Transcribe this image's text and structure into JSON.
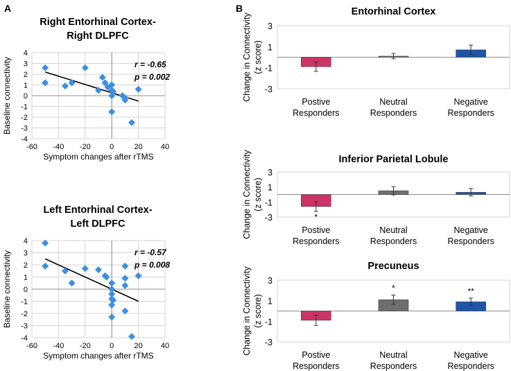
{
  "panel_labels": {
    "a": "A",
    "b": "B"
  },
  "colors": {
    "scatter_point": "#3d8fe0",
    "positive_bar": "#cc3366",
    "neutral_bar": "#6e6e6e",
    "negative_bar": "#1f55a8",
    "grid": "#d4d4d4",
    "axis": "#8c8c8c"
  },
  "chart_data": [
    {
      "type": "scatter",
      "title_line1": "Right Entorhinal Cortex-",
      "title_line2": "Right DLPFC",
      "xlabel": "Symptom changes after rTMS",
      "ylabel": "Baseline connectivity",
      "xlim": [
        -60,
        40
      ],
      "ylim": [
        -4,
        4
      ],
      "xticks": [
        -60,
        -40,
        -20,
        0,
        20,
        40
      ],
      "yticks": [
        -4,
        -3,
        -2,
        -1,
        0,
        1,
        2,
        3,
        4
      ],
      "r_text": "r = -0.65",
      "p_text": "p = 0.002",
      "points": [
        [
          -50,
          2.6
        ],
        [
          -50,
          1.2
        ],
        [
          -35,
          0.9
        ],
        [
          -30,
          1.2
        ],
        [
          -20,
          2.6
        ],
        [
          -10,
          0.5
        ],
        [
          -7,
          1.7
        ],
        [
          -5,
          1.2
        ],
        [
          -3,
          0.8
        ],
        [
          0,
          1.0
        ],
        [
          0,
          0.5
        ],
        [
          0,
          0.0
        ],
        [
          0,
          -1.5
        ],
        [
          1,
          0.4
        ],
        [
          8,
          0.0
        ],
        [
          10,
          -0.2
        ],
        [
          10,
          -0.4
        ],
        [
          15,
          -2.5
        ],
        [
          20,
          0.6
        ]
      ],
      "fit_line": [
        [
          -50,
          2.2
        ],
        [
          20,
          -0.5
        ]
      ]
    },
    {
      "type": "scatter",
      "title_line1": "Left Entorhinal Cortex-",
      "title_line2": "Left DLPFC",
      "xlabel": "Symptom changes after rTMS",
      "ylabel": "Baseline connectivity",
      "xlim": [
        -60,
        40
      ],
      "ylim": [
        -4,
        4
      ],
      "xticks": [
        -60,
        -40,
        -20,
        0,
        20,
        40
      ],
      "yticks": [
        -4,
        -3,
        -2,
        -1,
        0,
        1,
        2,
        3,
        4
      ],
      "r_text": "r = -0.57",
      "p_text": "p = 0.008",
      "points": [
        [
          -50,
          3.8
        ],
        [
          -50,
          1.9
        ],
        [
          -35,
          1.5
        ],
        [
          -30,
          0.5
        ],
        [
          -20,
          1.7
        ],
        [
          -10,
          1.6
        ],
        [
          -5,
          1.1
        ],
        [
          -4,
          1.0
        ],
        [
          0,
          0.5
        ],
        [
          0,
          0.0
        ],
        [
          0,
          -0.4
        ],
        [
          0,
          -0.8
        ],
        [
          0,
          -1.3
        ],
        [
          0,
          -2.3
        ],
        [
          1,
          -0.9
        ],
        [
          10,
          1.9
        ],
        [
          10,
          0.9
        ],
        [
          10,
          0.3
        ],
        [
          10,
          -1.8
        ],
        [
          15,
          -3.9
        ],
        [
          20,
          1.1
        ]
      ],
      "fit_line": [
        [
          -50,
          2.5
        ],
        [
          20,
          -1.0
        ]
      ]
    },
    {
      "type": "bar",
      "title": "Entorhinal Cortex",
      "ylabel_line1": "Change in Connectivity",
      "ylabel_line2": "(z score)",
      "ylim": [
        -3,
        3
      ],
      "yticks": [
        -3,
        -1,
        1,
        3
      ],
      "categories": [
        {
          "line1": "Postive",
          "line2": "Responders"
        },
        {
          "line1": "Neutral",
          "line2": "Responders"
        },
        {
          "line1": "Negative",
          "line2": "Responders"
        }
      ],
      "values": [
        -0.9,
        0.1,
        0.7
      ],
      "errors": [
        0.45,
        0.25,
        0.45
      ],
      "significance": [
        "",
        "",
        ""
      ]
    },
    {
      "type": "bar",
      "title": "Inferior Parietal Lobule",
      "ylabel_line1": "Change in Connectivity",
      "ylabel_line2": "(z score)",
      "ylim": [
        -3,
        3
      ],
      "yticks": [
        -3,
        -1,
        1,
        3
      ],
      "categories": [
        {
          "line1": "Postive",
          "line2": "Responders"
        },
        {
          "line1": "Neutral",
          "line2": "Responders"
        },
        {
          "line1": "Negative",
          "line2": "Responders"
        }
      ],
      "values": [
        -1.6,
        0.5,
        0.3
      ],
      "errors": [
        0.65,
        0.55,
        0.5
      ],
      "significance": [
        "*",
        "",
        ""
      ]
    },
    {
      "type": "bar",
      "title": "Precuneus",
      "ylabel_line1": "Change in Connectivity",
      "ylabel_line2": "(z score)",
      "ylim": [
        -3,
        3
      ],
      "yticks": [
        -3,
        -1,
        1,
        3
      ],
      "categories": [
        {
          "line1": "Postive",
          "line2": "Responders"
        },
        {
          "line1": "Neutral",
          "line2": "Responders"
        },
        {
          "line1": "Negative",
          "line2": "Responders"
        }
      ],
      "values": [
        -0.9,
        1.1,
        0.9
      ],
      "errors": [
        0.5,
        0.45,
        0.35
      ],
      "significance": [
        "",
        "*",
        "**"
      ]
    }
  ]
}
